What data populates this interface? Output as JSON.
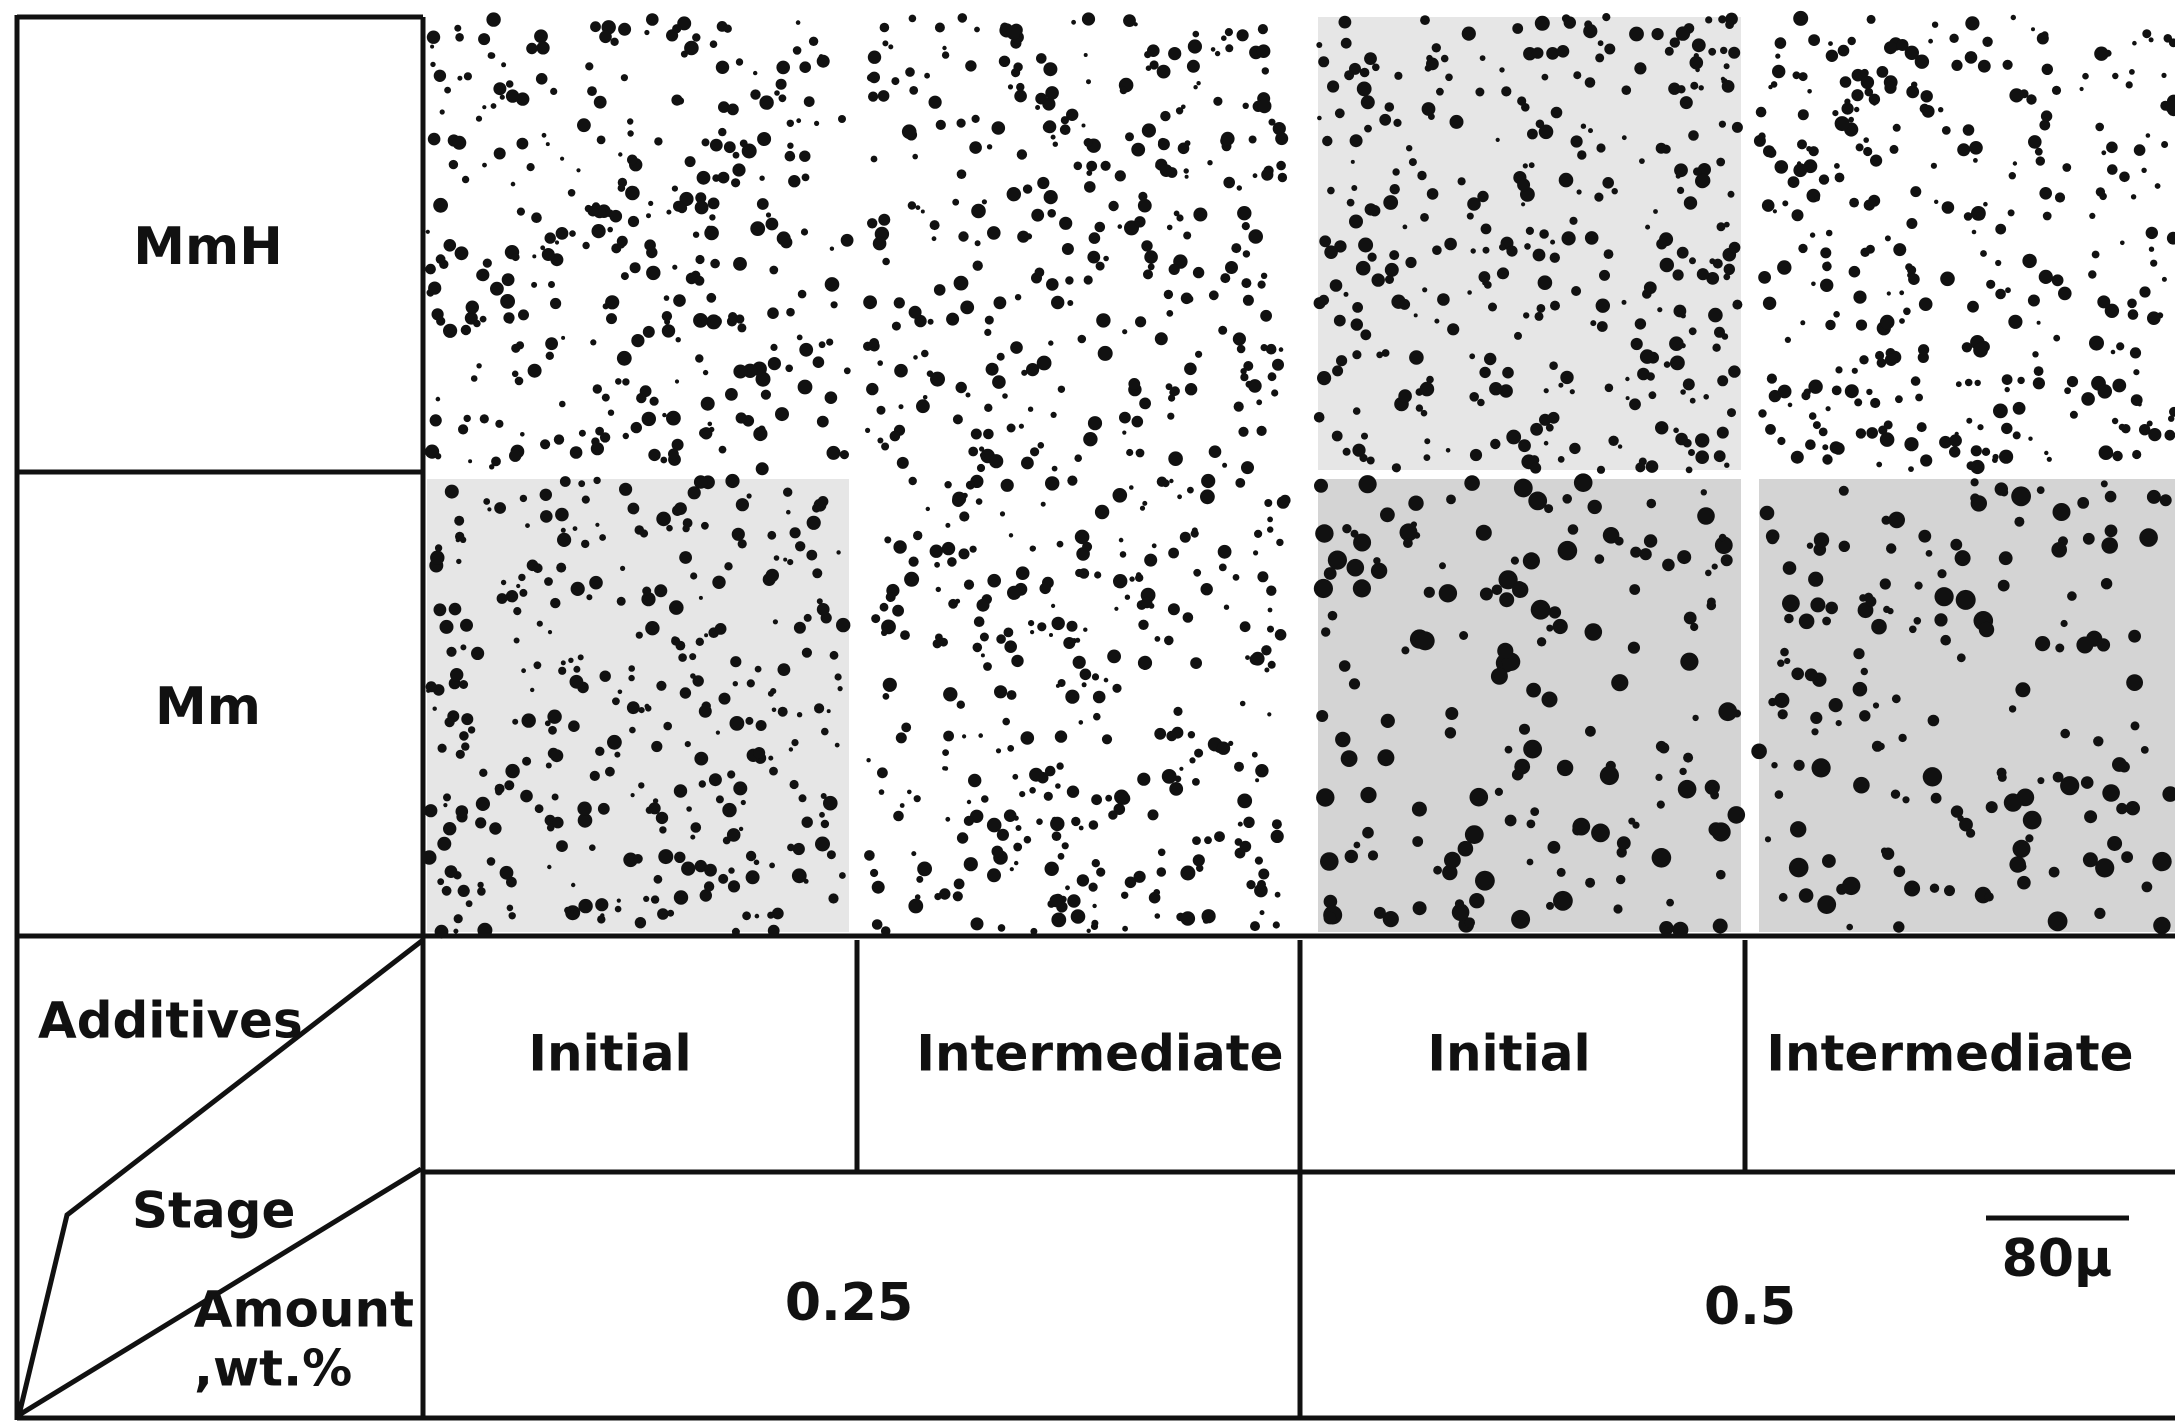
{
  "figure": {
    "rows": [
      {
        "label": "MmH"
      },
      {
        "label": "Mm"
      }
    ],
    "corner": {
      "additives": "Additives",
      "stage": "Stage",
      "amount": "Amount",
      "unit": ",wt.%"
    },
    "stages": [
      "Initial",
      "Intermediate",
      "Initial",
      "Intermediate"
    ],
    "amounts": [
      "0.25",
      "0.5"
    ],
    "scale_bar": "80μ"
  }
}
